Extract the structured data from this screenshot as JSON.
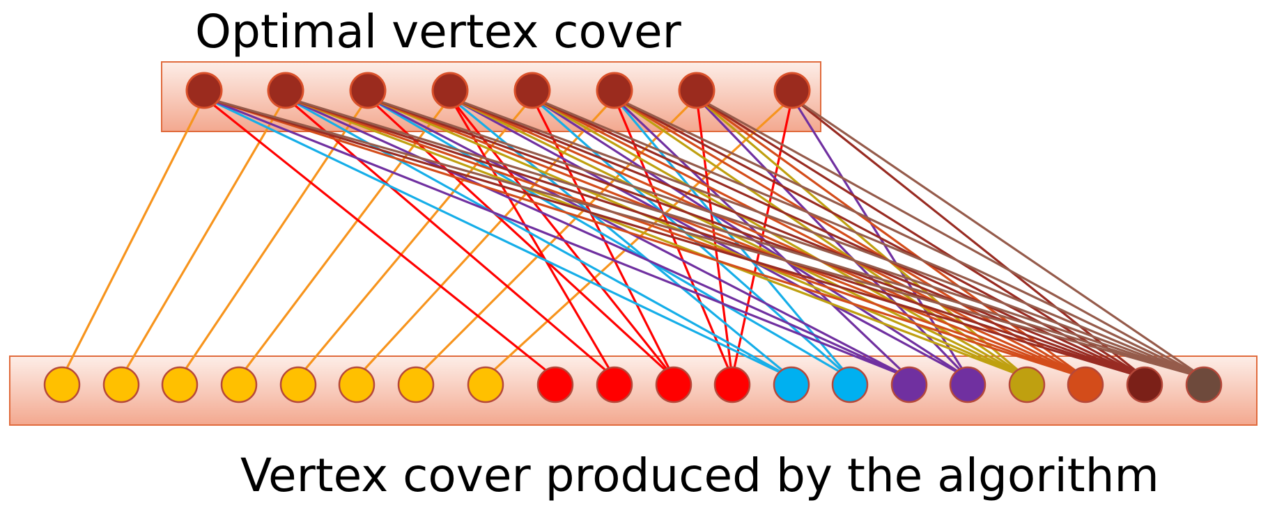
{
  "top_label": "Optimal vertex cover",
  "bottom_label": "Vertex cover produced by the algorithm",
  "colors": {
    "panel_edge": "#e06a3c",
    "panel_light": "#fdeee8",
    "panel_dark": "#f3a88f",
    "top_node_fill": "#9b2b1e",
    "top_node_stroke": "#d9502a",
    "node_stroke_bottom": "#b5483a"
  },
  "top_nodes": [
    {
      "id": "t1",
      "color": "#9b2b1e"
    },
    {
      "id": "t2",
      "color": "#9b2b1e"
    },
    {
      "id": "t3",
      "color": "#9b2b1e"
    },
    {
      "id": "t4",
      "color": "#9b2b1e"
    },
    {
      "id": "t5",
      "color": "#9b2b1e"
    },
    {
      "id": "t6",
      "color": "#9b2b1e"
    },
    {
      "id": "t7",
      "color": "#9b2b1e"
    },
    {
      "id": "t8",
      "color": "#9b2b1e"
    }
  ],
  "bottom_nodes": [
    {
      "id": "b1",
      "color": "#ffc000",
      "edge_color": "#f7941d"
    },
    {
      "id": "b2",
      "color": "#ffc000",
      "edge_color": "#f7941d"
    },
    {
      "id": "b3",
      "color": "#ffc000",
      "edge_color": "#f7941d"
    },
    {
      "id": "b4",
      "color": "#ffc000",
      "edge_color": "#f7941d"
    },
    {
      "id": "b5",
      "color": "#ffc000",
      "edge_color": "#f7941d"
    },
    {
      "id": "b6",
      "color": "#ffc000",
      "edge_color": "#f7941d"
    },
    {
      "id": "b7",
      "color": "#ffc000",
      "edge_color": "#f7941d"
    },
    {
      "id": "b8",
      "color": "#ffc000",
      "edge_color": "#f7941d"
    },
    {
      "id": "b9",
      "color": "#ff0000",
      "edge_color": "#ff0000"
    },
    {
      "id": "b10",
      "color": "#ff0000",
      "edge_color": "#ff0000"
    },
    {
      "id": "b11",
      "color": "#ff0000",
      "edge_color": "#ff0000"
    },
    {
      "id": "b12",
      "color": "#ff0000",
      "edge_color": "#ff0000"
    },
    {
      "id": "b13",
      "color": "#00b0f0",
      "edge_color": "#16aee8"
    },
    {
      "id": "b14",
      "color": "#00b0f0",
      "edge_color": "#16aee8"
    },
    {
      "id": "b15",
      "color": "#7030a0",
      "edge_color": "#7030a0"
    },
    {
      "id": "b16",
      "color": "#7030a0",
      "edge_color": "#7030a0"
    },
    {
      "id": "b17",
      "color": "#bfa010",
      "edge_color": "#bfa010"
    },
    {
      "id": "b18",
      "color": "#d34c1a",
      "edge_color": "#d34c1a"
    },
    {
      "id": "b19",
      "color": "#7b2018",
      "edge_color": "#982b22"
    },
    {
      "id": "b20",
      "color": "#6e4a3c",
      "edge_color": "#955b4b"
    }
  ],
  "edges": [
    [
      "t1",
      "b1"
    ],
    [
      "t2",
      "b2"
    ],
    [
      "t3",
      "b3"
    ],
    [
      "t4",
      "b4"
    ],
    [
      "t5",
      "b5"
    ],
    [
      "t6",
      "b6"
    ],
    [
      "t7",
      "b7"
    ],
    [
      "t8",
      "b8"
    ],
    [
      "t1",
      "b9"
    ],
    [
      "t2",
      "b10"
    ],
    [
      "t3",
      "b11"
    ],
    [
      "t4",
      "b10"
    ],
    [
      "t4",
      "b11"
    ],
    [
      "t5",
      "b11"
    ],
    [
      "t6",
      "b12"
    ],
    [
      "t7",
      "b12"
    ],
    [
      "t8",
      "b12"
    ],
    [
      "t1",
      "b13"
    ],
    [
      "t2",
      "b13"
    ],
    [
      "t3",
      "b14"
    ],
    [
      "t4",
      "b13"
    ],
    [
      "t5",
      "b14"
    ],
    [
      "t6",
      "b14"
    ],
    [
      "t1",
      "b15"
    ],
    [
      "t2",
      "b15"
    ],
    [
      "t3",
      "b15"
    ],
    [
      "t4",
      "b16"
    ],
    [
      "t5",
      "b16"
    ],
    [
      "t6",
      "b15"
    ],
    [
      "t7",
      "b16"
    ],
    [
      "t8",
      "b16"
    ],
    [
      "t2",
      "b17"
    ],
    [
      "t3",
      "b17"
    ],
    [
      "t4",
      "b17"
    ],
    [
      "t5",
      "b17"
    ],
    [
      "t6",
      "b17"
    ],
    [
      "t7",
      "b17"
    ],
    [
      "t1",
      "b18"
    ],
    [
      "t2",
      "b18"
    ],
    [
      "t3",
      "b18"
    ],
    [
      "t4",
      "b18"
    ],
    [
      "t5",
      "b18"
    ],
    [
      "t6",
      "b18"
    ],
    [
      "t7",
      "b18"
    ],
    [
      "t1",
      "b19"
    ],
    [
      "t2",
      "b19"
    ],
    [
      "t3",
      "b19"
    ],
    [
      "t4",
      "b19"
    ],
    [
      "t5",
      "b19"
    ],
    [
      "t6",
      "b19"
    ],
    [
      "t7",
      "b19"
    ],
    [
      "t8",
      "b19"
    ],
    [
      "t1",
      "b20"
    ],
    [
      "t2",
      "b20"
    ],
    [
      "t3",
      "b20"
    ],
    [
      "t4",
      "b20"
    ],
    [
      "t5",
      "b20"
    ],
    [
      "t6",
      "b20"
    ],
    [
      "t7",
      "b20"
    ],
    [
      "t8",
      "b20"
    ]
  ]
}
